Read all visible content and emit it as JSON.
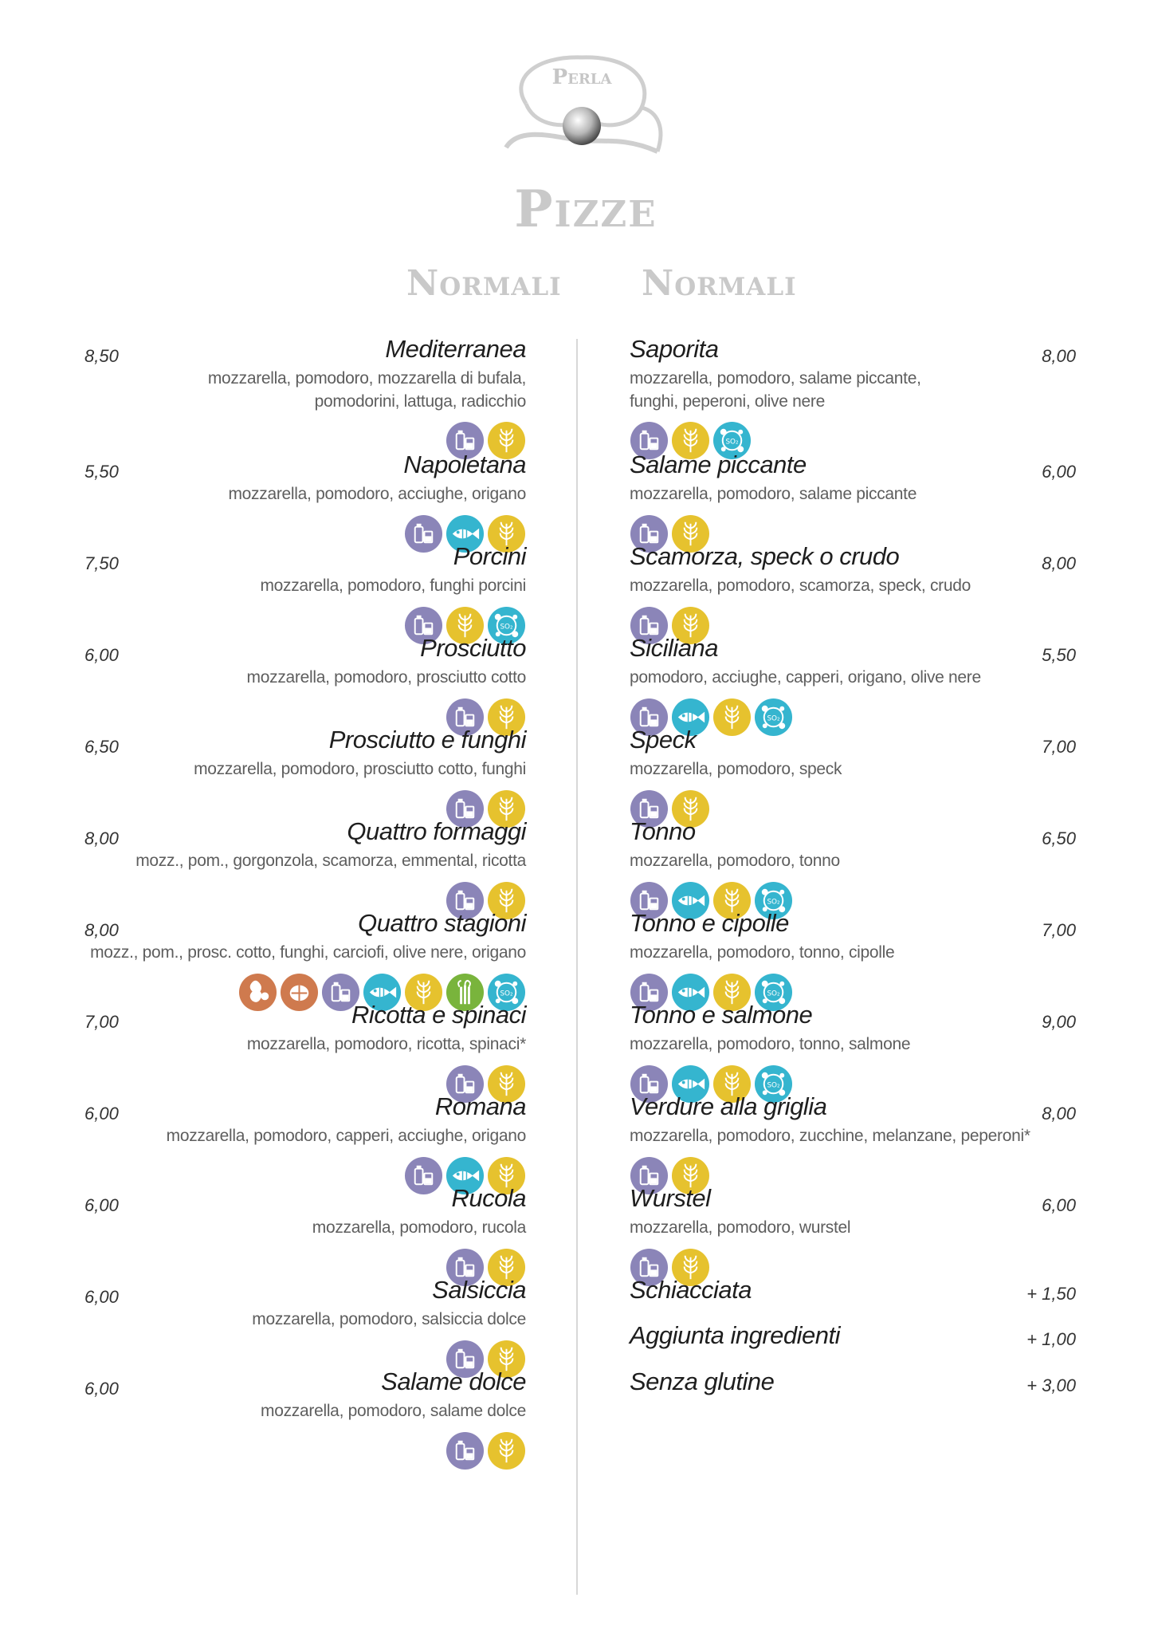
{
  "logo": {
    "word_top": "Perla"
  },
  "title": "Pizze",
  "columns": {
    "left_heading": "Normali",
    "right_heading": "Normali"
  },
  "allergen_colors": {
    "milk": "#8b85b8",
    "gluten": "#e6c22e",
    "fish": "#35b5cf",
    "sulphites": "#35b5cf",
    "peanuts": "#cf7a4e",
    "nuts": "#cf7a4e",
    "celery": "#79b43c"
  },
  "left": [
    {
      "price": "8,50",
      "name": "Mediterranea",
      "desc": [
        "mozzarella, pomodoro, mozzarella di bufala,",
        "pomodorini, lattuga, radicchio"
      ],
      "icons": [
        "milk-icon",
        "gluten-icon"
      ]
    },
    {
      "price": "5,50",
      "name": "Napoletana",
      "desc": [
        "mozzarella, pomodoro, acciughe, origano"
      ],
      "icons": [
        "milk-icon",
        "fish-icon",
        "gluten-icon"
      ]
    },
    {
      "price": "7,50",
      "name": "Porcini",
      "desc": [
        "mozzarella, pomodoro, funghi porcini"
      ],
      "icons": [
        "milk-icon",
        "gluten-icon",
        "sulphites-icon"
      ]
    },
    {
      "price": "6,00",
      "name": "Prosciutto",
      "desc": [
        "mozzarella, pomodoro, prosciutto cotto"
      ],
      "icons": [
        "milk-icon",
        "gluten-icon"
      ]
    },
    {
      "price": "6,50",
      "name": "Prosciutto e funghi",
      "desc": [
        "mozzarella, pomodoro, prosciutto cotto, funghi"
      ],
      "icons": [
        "milk-icon",
        "gluten-icon"
      ]
    },
    {
      "price": "8,00",
      "name": "Quattro formaggi",
      "desc": [
        "mozz., pom., gorgonzola, scamorza, emmental, ricotta"
      ],
      "icons": [
        "milk-icon",
        "gluten-icon"
      ]
    },
    {
      "price": "8,00",
      "name": "Quattro stagioni",
      "desc": [
        "mozz., pom., prosc. cotto, funghi, carciofi, olive nere, origano"
      ],
      "icons": [
        "peanuts-icon",
        "nuts-icon",
        "milk-icon",
        "fish-icon",
        "gluten-icon",
        "celery-icon",
        "sulphites-icon"
      ]
    },
    {
      "price": "7,00",
      "name": "Ricotta e spinaci",
      "desc": [
        "mozzarella, pomodoro, ricotta, spinaci*"
      ],
      "icons": [
        "milk-icon",
        "gluten-icon"
      ]
    },
    {
      "price": "6,00",
      "name": "Romana",
      "desc": [
        "mozzarella, pomodoro, capperi, acciughe, origano"
      ],
      "icons": [
        "milk-icon",
        "fish-icon",
        "gluten-icon"
      ]
    },
    {
      "price": "6,00",
      "name": "Rucola",
      "desc": [
        "mozzarella, pomodoro, rucola"
      ],
      "icons": [
        "milk-icon",
        "gluten-icon"
      ]
    },
    {
      "price": "6,00",
      "name": "Salsiccia",
      "desc": [
        "mozzarella, pomodoro, salsiccia dolce"
      ],
      "icons": [
        "milk-icon",
        "gluten-icon"
      ]
    },
    {
      "price": "6,00",
      "name": "Salame dolce",
      "desc": [
        "mozzarella, pomodoro, salame dolce"
      ],
      "icons": [
        "milk-icon",
        "gluten-icon"
      ]
    }
  ],
  "right": [
    {
      "price": "8,00",
      "name": "Saporita",
      "desc": [
        "mozzarella, pomodoro, salame piccante,",
        "funghi, peperoni, olive nere"
      ],
      "icons": [
        "milk-icon",
        "gluten-icon",
        "sulphites-icon"
      ]
    },
    {
      "price": "6,00",
      "name": "Salame piccante",
      "desc": [
        "mozzarella, pomodoro, salame piccante"
      ],
      "icons": [
        "milk-icon",
        "gluten-icon"
      ]
    },
    {
      "price": "8,00",
      "name": "Scamorza, speck o crudo",
      "desc": [
        "mozzarella, pomodoro, scamorza, speck, crudo"
      ],
      "icons": [
        "milk-icon",
        "gluten-icon"
      ]
    },
    {
      "price": "5,50",
      "name": "Siciliana",
      "desc": [
        "pomodoro, acciughe, capperi, origano, olive nere"
      ],
      "icons": [
        "milk-icon",
        "fish-icon",
        "gluten-icon",
        "sulphites-icon"
      ]
    },
    {
      "price": "7,00",
      "name": "Speck",
      "desc": [
        "mozzarella, pomodoro, speck"
      ],
      "icons": [
        "milk-icon",
        "gluten-icon"
      ]
    },
    {
      "price": "6,50",
      "name": "Tonno",
      "desc": [
        "mozzarella, pomodoro, tonno"
      ],
      "icons": [
        "milk-icon",
        "fish-icon",
        "gluten-icon",
        "sulphites-icon"
      ]
    },
    {
      "price": "7,00",
      "name": "Tonno e cipolle",
      "desc": [
        "mozzarella, pomodoro, tonno, cipolle"
      ],
      "icons": [
        "milk-icon",
        "fish-icon",
        "gluten-icon",
        "sulphites-icon"
      ]
    },
    {
      "price": "9,00",
      "name": "Tonno e salmone",
      "desc": [
        "mozzarella, pomodoro, tonno, salmone"
      ],
      "icons": [
        "milk-icon",
        "fish-icon",
        "gluten-icon",
        "sulphites-icon"
      ]
    },
    {
      "price": "8,00",
      "name": "Verdure alla griglia",
      "desc": [
        "mozzarella, pomodoro, zucchine, melanzane, peperoni*"
      ],
      "icons": [
        "milk-icon",
        "gluten-icon"
      ]
    },
    {
      "price": "6,00",
      "name": "Wurstel",
      "desc": [
        "mozzarella, pomodoro, wurstel"
      ],
      "icons": [
        "milk-icon",
        "gluten-icon"
      ]
    }
  ],
  "extras": [
    {
      "name": "Schiacciata",
      "price": "+ 1,50"
    },
    {
      "name": "Aggiunta ingredienti",
      "price": "+ 1,00"
    },
    {
      "name": "Senza glutine",
      "price": "+ 3,00"
    }
  ]
}
